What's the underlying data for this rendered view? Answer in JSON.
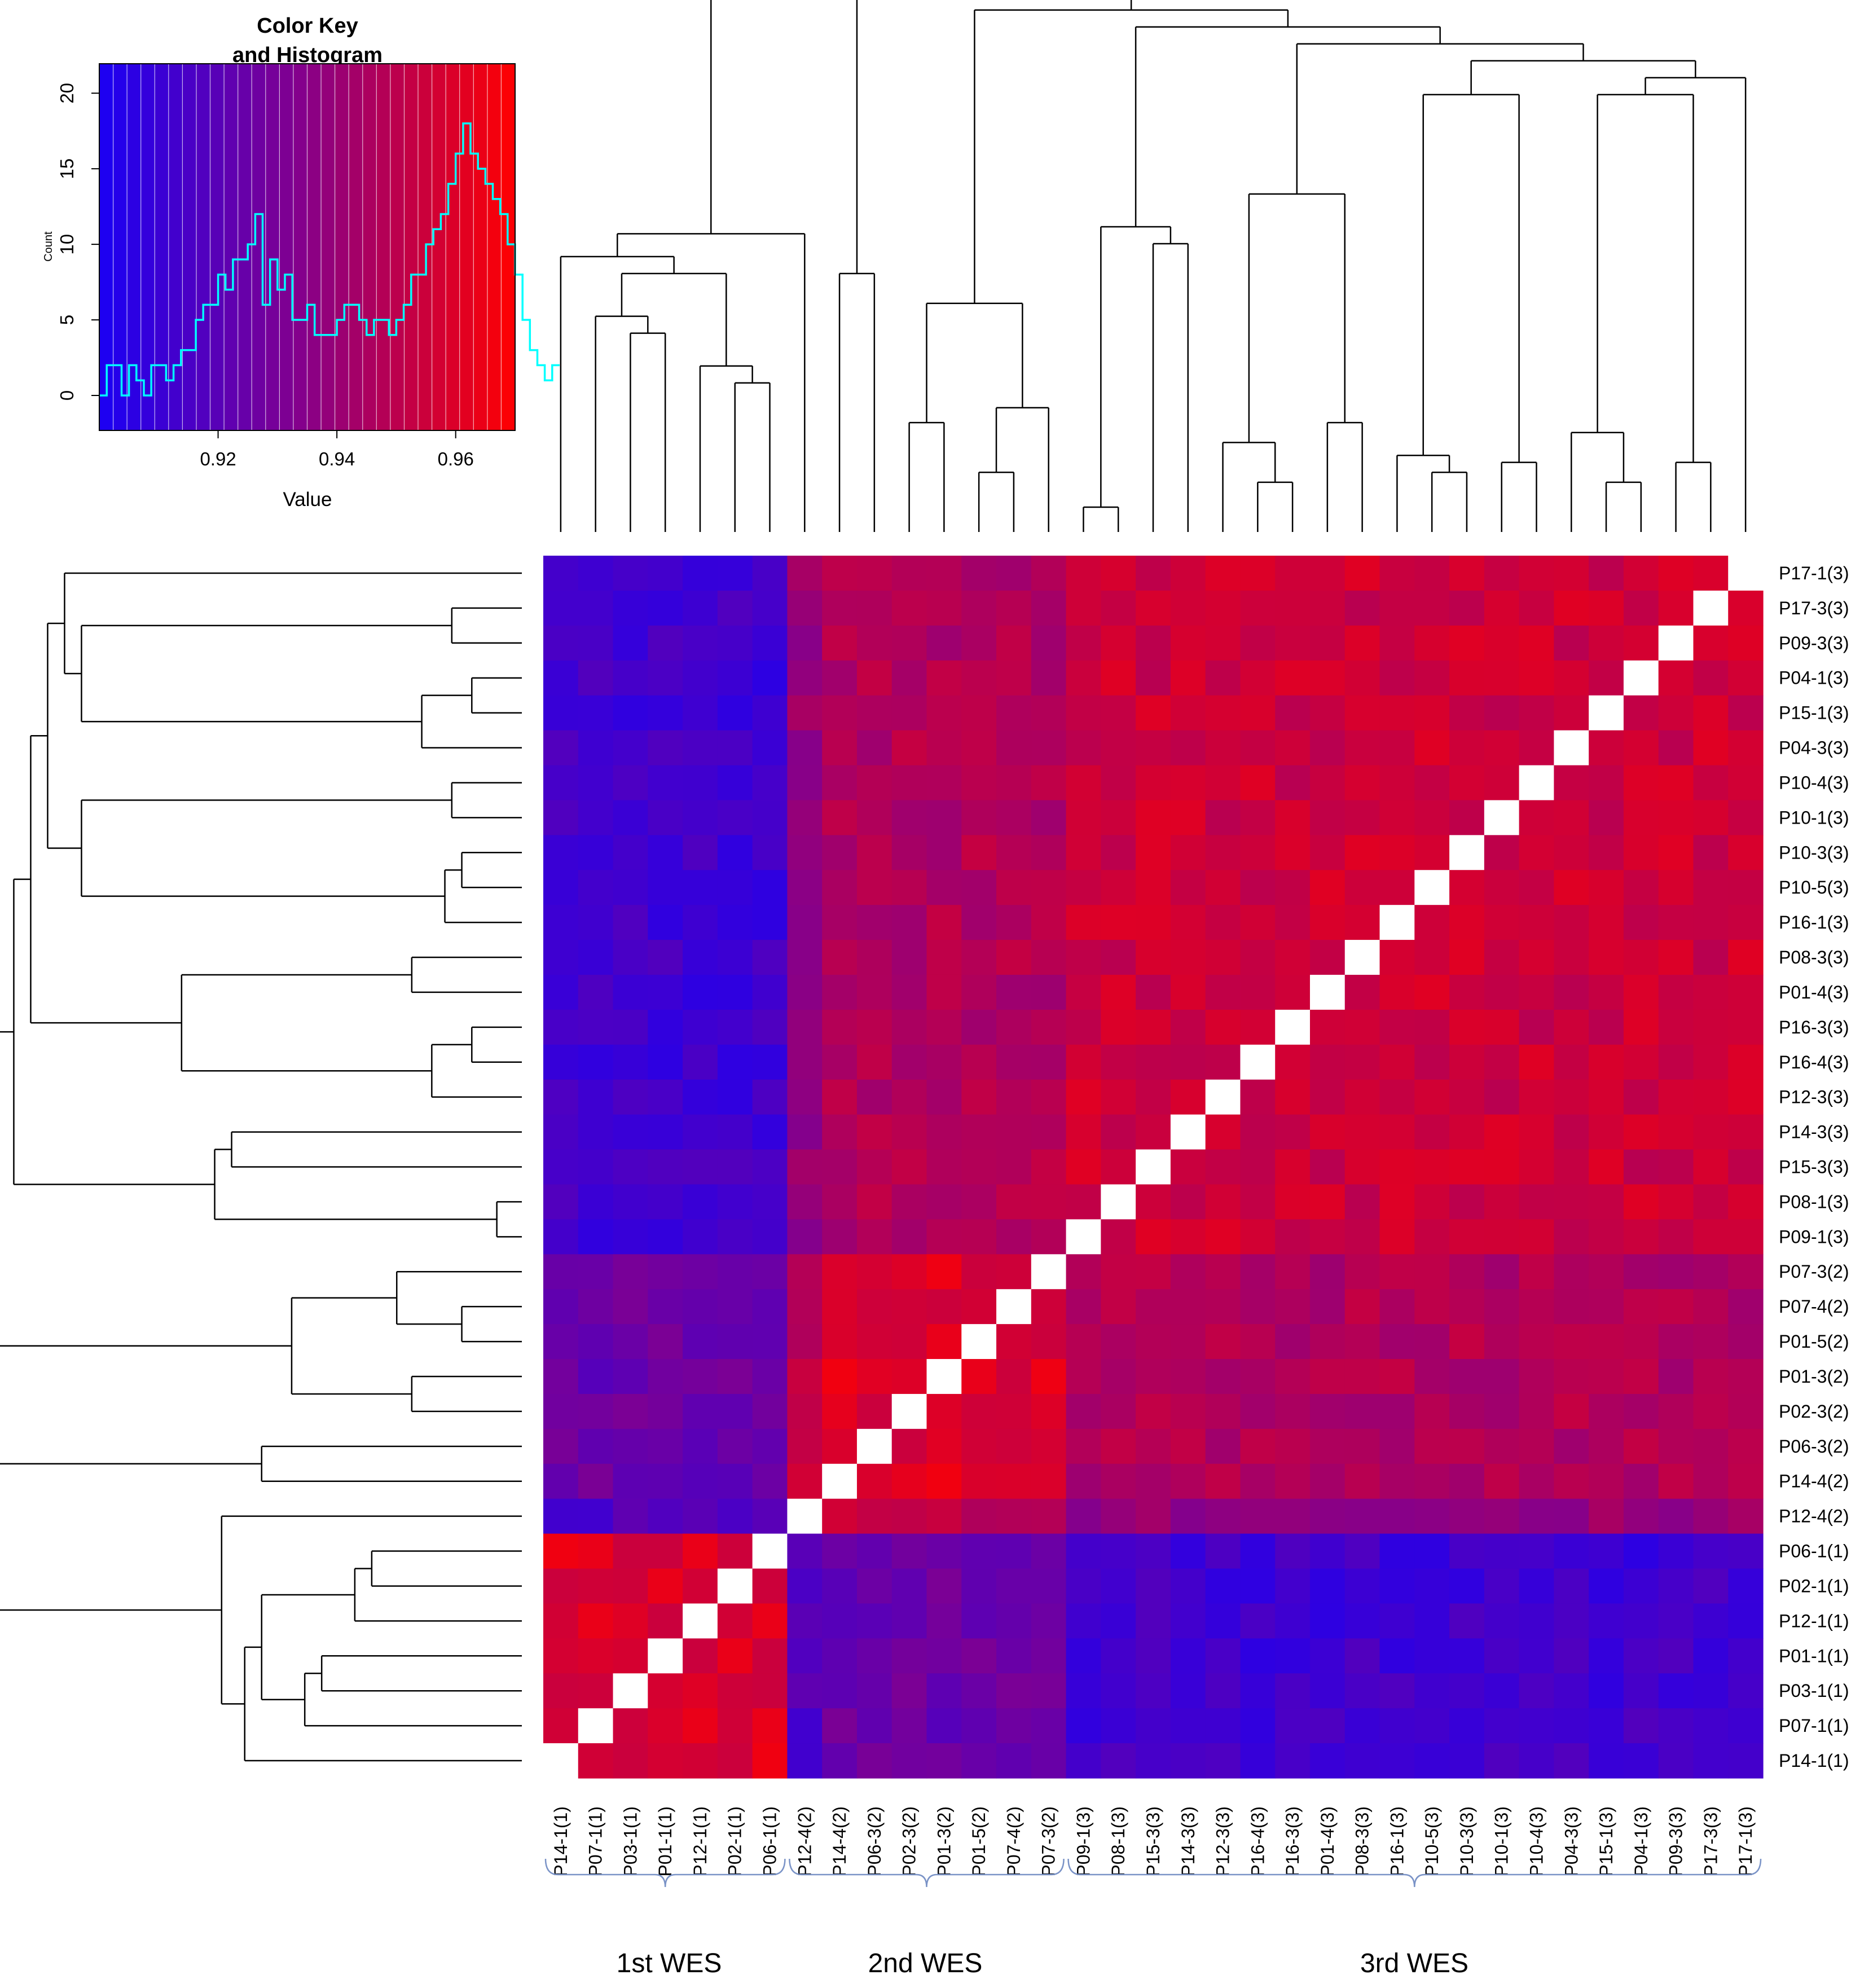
{
  "color_key": {
    "title_line1": "Color Key",
    "title_line2": "and Histogram",
    "xlabel": "Value",
    "ylabel": "Count",
    "x_ticks": [
      "0.92",
      "0.94",
      "0.96"
    ],
    "y_ticks": [
      "0",
      "5",
      "10",
      "15",
      "20"
    ]
  },
  "groups": [
    {
      "label": "1st WES"
    },
    {
      "label": "2nd WES"
    },
    {
      "label": "3rd WES"
    }
  ],
  "colors": {
    "low": "#1a00f5",
    "mid": "#880088",
    "high": "#ff0000",
    "diag": "#ffffff",
    "hist_line": "#00ffff"
  },
  "chart_data": {
    "type": "heatmap",
    "title": "Color Key and Histogram",
    "value_range": [
      0.9,
      0.97
    ],
    "columns": [
      "P14-1(1)",
      "P07-1(1)",
      "P03-1(1)",
      "P01-1(1)",
      "P12-1(1)",
      "P02-1(1)",
      "P06-1(1)",
      "P12-4(2)",
      "P14-4(2)",
      "P06-3(2)",
      "P02-3(2)",
      "P01-3(2)",
      "P01-5(2)",
      "P07-4(2)",
      "P07-3(2)",
      "P09-1(3)",
      "P08-1(3)",
      "P15-3(3)",
      "P14-3(3)",
      "P12-3(3)",
      "P16-4(3)",
      "P16-3(3)",
      "P01-4(3)",
      "P08-3(3)",
      "P16-1(3)",
      "P10-5(3)",
      "P10-3(3)",
      "P10-1(3)",
      "P10-4(3)",
      "P04-3(3)",
      "P15-1(3)",
      "P04-1(3)",
      "P09-3(3)",
      "P17-3(3)",
      "P17-1(3)"
    ],
    "rows_top_to_bottom": [
      "P17-1(3)",
      "P17-3(3)",
      "P09-3(3)",
      "P04-1(3)",
      "P15-1(3)",
      "P04-3(3)",
      "P10-4(3)",
      "P10-1(3)",
      "P10-3(3)",
      "P10-5(3)",
      "P16-1(3)",
      "P08-3(3)",
      "P01-4(3)",
      "P16-3(3)",
      "P16-4(3)",
      "P12-3(3)",
      "P14-3(3)",
      "P15-3(3)",
      "P08-1(3)",
      "P09-1(3)",
      "P07-3(2)",
      "P07-4(2)",
      "P01-5(2)",
      "P01-3(2)",
      "P02-3(2)",
      "P06-3(2)",
      "P14-4(2)",
      "P12-4(2)",
      "P06-1(1)",
      "P02-1(1)",
      "P12-1(1)",
      "P01-1(1)",
      "P03-1(1)",
      "P07-1(1)",
      "P14-1(1)"
    ],
    "group_sizes": [
      7,
      8,
      20
    ],
    "group_base_values": [
      [
        0.96,
        0.925,
        0.912
      ],
      [
        0.925,
        0.96,
        0.947
      ],
      [
        0.912,
        0.947,
        0.955
      ]
    ],
    "histogram": {
      "bin_start": 0.9,
      "bin_width": 0.00125,
      "counts": [
        0,
        2,
        2,
        0,
        2,
        1,
        0,
        2,
        2,
        1,
        2,
        3,
        3,
        5,
        6,
        6,
        8,
        7,
        9,
        9,
        10,
        12,
        6,
        9,
        7,
        8,
        5,
        5,
        6,
        4,
        4,
        4,
        5,
        6,
        6,
        5,
        4,
        5,
        5,
        4,
        5,
        6,
        8,
        8,
        10,
        11,
        12,
        14,
        16,
        18,
        16,
        15,
        14,
        13,
        12,
        10,
        8,
        5,
        3,
        2,
        1,
        2
      ]
    }
  }
}
